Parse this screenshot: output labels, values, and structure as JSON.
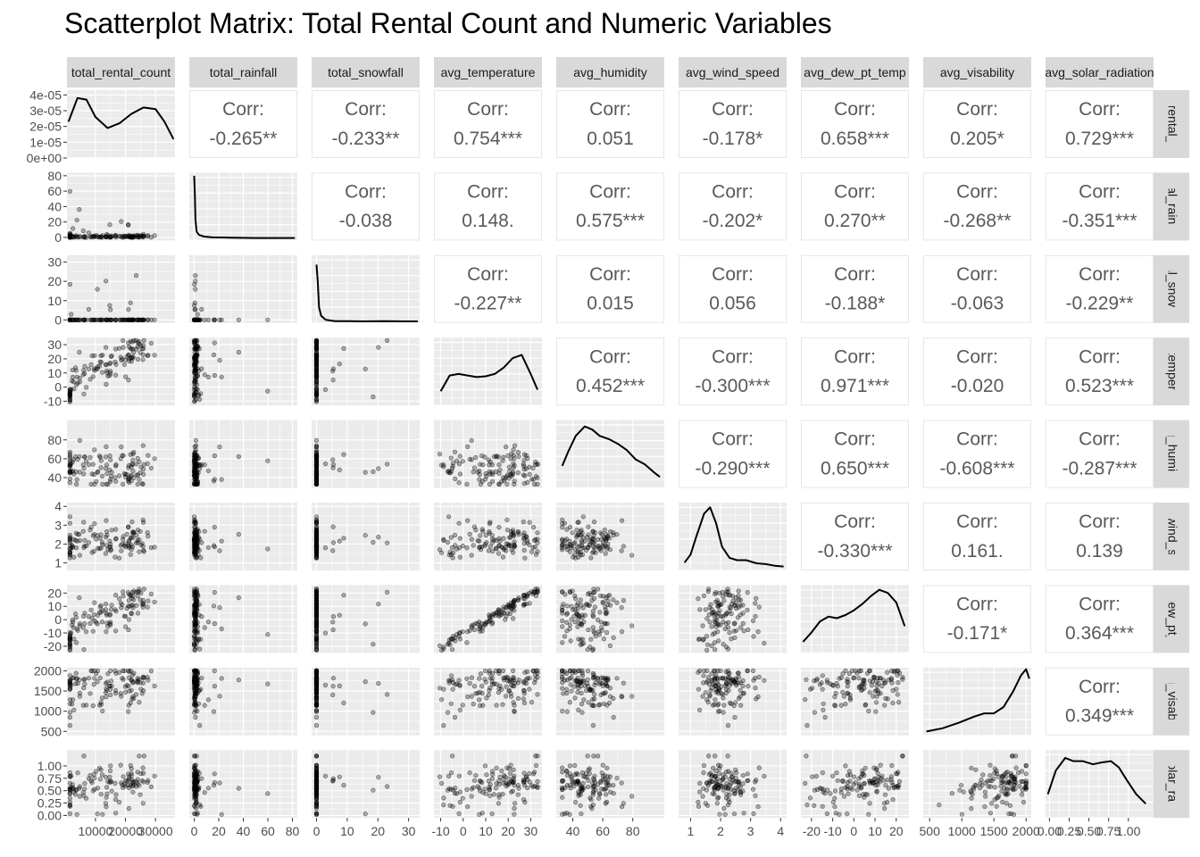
{
  "title": "Scatterplot Matrix: Total Rental Count and Numeric Variables",
  "chart_data": {
    "type": "scatter_matrix",
    "variables": [
      "total_rental_count",
      "total_rainfall",
      "total_snowfall",
      "avg_temperature",
      "avg_humidity",
      "avg_wind_speed",
      "avg_dew_pt_temp",
      "avg_visability",
      "avg_solar_radiation"
    ],
    "corr_label": "Corr:",
    "correlations": [
      [
        "",
        "-0.265**",
        "-0.233**",
        "0.754***",
        "0.051",
        "-0.178*",
        "0.658***",
        "0.205*",
        "0.729***"
      ],
      [
        "",
        "",
        "-0.038",
        "0.148.",
        "0.575***",
        "-0.202*",
        "0.270**",
        "-0.268**",
        "-0.351***"
      ],
      [
        "",
        "",
        "",
        "-0.227**",
        "0.015",
        "0.056",
        "-0.188*",
        "-0.063",
        "-0.229**"
      ],
      [
        "",
        "",
        "",
        "",
        "0.452***",
        "-0.300***",
        "0.971***",
        "-0.020",
        "0.523***"
      ],
      [
        "",
        "",
        "",
        "",
        "",
        "-0.290***",
        "0.650***",
        "-0.608***",
        "-0.287***"
      ],
      [
        "",
        "",
        "",
        "",
        "",
        "",
        "-0.330***",
        "0.161.",
        "0.139"
      ],
      [
        "",
        "",
        "",
        "",
        "",
        "",
        "",
        "-0.171*",
        "0.364***"
      ],
      [
        "",
        "",
        "",
        "",
        "",
        "",
        "",
        "",
        "0.349***"
      ],
      [
        "",
        "",
        "",
        "",
        "",
        "",
        "",
        "",
        ""
      ]
    ],
    "ranges": [
      [
        500,
        36500
      ],
      [
        -4,
        84
      ],
      [
        -1.6,
        33.6
      ],
      [
        -13,
        35
      ],
      [
        29,
        101
      ],
      [
        0.6,
        4.2
      ],
      [
        -25,
        26
      ],
      [
        400,
        2080
      ],
      [
        -0.05,
        1.32
      ]
    ],
    "x_ticks": [
      {
        "values": [
          10000,
          20000,
          30000
        ],
        "labels": [
          "10000",
          "20000",
          "30000"
        ]
      },
      {
        "values": [
          0,
          20,
          40,
          60,
          80
        ],
        "labels": [
          "0",
          "20",
          "40",
          "60",
          "80"
        ]
      },
      {
        "values": [
          0,
          10,
          20,
          30
        ],
        "labels": [
          "0",
          "10",
          "20",
          "30"
        ]
      },
      {
        "values": [
          -10,
          0,
          10,
          20,
          30
        ],
        "labels": [
          "-10",
          "0",
          "10",
          "20",
          "30"
        ]
      },
      {
        "values": [
          40,
          60,
          80
        ],
        "labels": [
          "40",
          "60",
          "80"
        ]
      },
      {
        "values": [
          1,
          2,
          3,
          4
        ],
        "labels": [
          "1",
          "2",
          "3",
          "4"
        ]
      },
      {
        "values": [
          -20,
          -10,
          0,
          10,
          20
        ],
        "labels": [
          "-20",
          "-10",
          "0",
          "10",
          "20"
        ]
      },
      {
        "values": [
          500,
          1000,
          1500,
          2000
        ],
        "labels": [
          "500",
          "1000",
          "1500",
          "2000"
        ]
      },
      {
        "values": [
          0,
          0.25,
          0.5,
          0.75,
          1
        ],
        "labels": [
          "0.00",
          "0.25",
          "0.50",
          "0.75",
          "1.00"
        ]
      }
    ],
    "y_ticks": [
      {
        "values": [
          0,
          1,
          2,
          3,
          4
        ],
        "labels": [
          "0e+00",
          "1e-05",
          "2e-05",
          "3e-05",
          "4e-05"
        ]
      },
      {
        "values": [
          0,
          20,
          40,
          60,
          80
        ],
        "labels": [
          "0",
          "20",
          "40",
          "60",
          "80"
        ]
      },
      {
        "values": [
          0,
          10,
          20,
          30
        ],
        "labels": [
          "0",
          "10",
          "20",
          "30"
        ]
      },
      {
        "values": [
          -10,
          0,
          10,
          20,
          30
        ],
        "labels": [
          "-10",
          "0",
          "10",
          "20",
          "30"
        ]
      },
      {
        "values": [
          40,
          60,
          80
        ],
        "labels": [
          "40",
          "60",
          "80"
        ]
      },
      {
        "values": [
          1,
          2,
          3,
          4
        ],
        "labels": [
          "1",
          "2",
          "3",
          "4"
        ]
      },
      {
        "values": [
          -20,
          -10,
          0,
          10,
          20
        ],
        "labels": [
          "-20",
          "-10",
          "0",
          "10",
          "20"
        ]
      },
      {
        "values": [
          500,
          1000,
          1500,
          2000
        ],
        "labels": [
          "500",
          "1000",
          "1500",
          "2000"
        ]
      },
      {
        "values": [
          0,
          0.25,
          0.5,
          0.75,
          1
        ],
        "labels": [
          "0.00",
          "0.25",
          "0.50",
          "0.75",
          "1.00"
        ]
      }
    ],
    "density_y_range": [
      0,
      4.3
    ],
    "densities": [
      {
        "x": [
          1000,
          4000,
          7000,
          10000,
          14000,
          18000,
          22000,
          26000,
          30000,
          33000,
          36000
        ],
        "y": [
          2.3,
          3.8,
          3.7,
          2.6,
          1.9,
          2.2,
          2.8,
          3.2,
          3.1,
          2.3,
          1.2
        ]
      },
      {
        "x": [
          0,
          0.5,
          1,
          2,
          4,
          8,
          15,
          30,
          50,
          70,
          82
        ],
        "y": [
          4.1,
          3.0,
          1.3,
          0.55,
          0.35,
          0.25,
          0.2,
          0.18,
          0.16,
          0.16,
          0.16
        ]
      },
      {
        "x": [
          0,
          0.4,
          0.8,
          1.5,
          3,
          6,
          10,
          15,
          22,
          28,
          33
        ],
        "y": [
          3.7,
          2.6,
          1.0,
          0.45,
          0.2,
          0.12,
          0.12,
          0.1,
          0.12,
          0.1,
          0.1
        ]
      },
      {
        "x": [
          -10,
          -6,
          -2,
          2,
          6,
          10,
          14,
          18,
          22,
          26,
          30,
          33
        ],
        "y": [
          0.9,
          1.9,
          2.0,
          1.9,
          1.8,
          1.85,
          2.0,
          2.4,
          3.0,
          3.2,
          2.0,
          1.0
        ]
      },
      {
        "x": [
          33,
          37,
          42,
          48,
          53,
          58,
          64,
          70,
          76,
          82,
          88,
          94,
          98
        ],
        "y": [
          1.4,
          2.3,
          3.3,
          3.9,
          3.7,
          3.3,
          3.1,
          2.8,
          2.4,
          1.8,
          1.5,
          1.0,
          0.7
        ]
      },
      {
        "x": [
          0.8,
          1.0,
          1.2,
          1.45,
          1.65,
          1.85,
          2.05,
          2.3,
          2.55,
          2.85,
          3.2,
          3.5,
          3.8,
          4.1
        ],
        "y": [
          0.5,
          1.0,
          2.2,
          3.6,
          4.0,
          3.0,
          1.5,
          0.8,
          0.65,
          0.65,
          0.45,
          0.4,
          0.3,
          0.25
        ]
      },
      {
        "x": [
          -24,
          -20,
          -16,
          -12,
          -8,
          -4,
          0,
          4,
          8,
          12,
          16,
          20,
          24
        ],
        "y": [
          0.7,
          1.3,
          2.0,
          2.3,
          2.2,
          2.4,
          2.7,
          3.1,
          3.6,
          4.0,
          3.8,
          3.2,
          1.7
        ]
      },
      {
        "x": [
          450,
          700,
          950,
          1200,
          1350,
          1500,
          1650,
          1800,
          1920,
          2000,
          2050
        ],
        "y": [
          0.25,
          0.45,
          0.8,
          1.2,
          1.4,
          1.4,
          1.8,
          2.8,
          3.8,
          4.2,
          3.6
        ]
      },
      {
        "x": [
          -0.02,
          0.08,
          0.2,
          0.3,
          0.42,
          0.55,
          0.65,
          0.78,
          0.88,
          0.98,
          1.1,
          1.22
        ],
        "y": [
          1.5,
          3.0,
          3.8,
          3.6,
          3.6,
          3.4,
          3.5,
          3.6,
          3.2,
          2.4,
          1.5,
          0.9
        ]
      }
    ],
    "colors": {
      "panel": "#ebebeb",
      "grid": "#ffffff",
      "strip": "#d9d9d9",
      "points": "#000000",
      "corr_border": "#e6e6e6"
    },
    "grid": true
  }
}
